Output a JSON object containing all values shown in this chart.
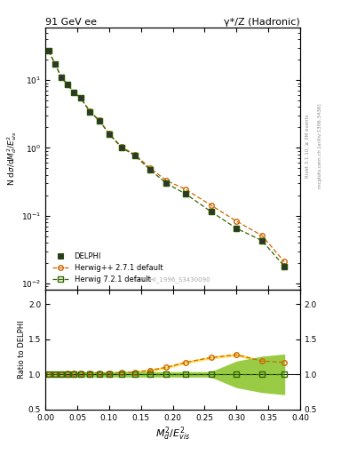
{
  "title_left": "91 GeV ee",
  "title_right": "γ*/Z (Hadronic)",
  "ylabel_main": "N dσ/dM²_d/E²_vis",
  "ylabel_ratio": "Ratio to DELPHI",
  "xlabel": "M²_d/E²_vis",
  "watermark": "DELPHI_1996_S3430090",
  "right_label": "Rivet 3.1.10, ≥ 3M events",
  "right_label2": "mcplots.cern.ch [arXiv:1306.3436]",
  "xlim": [
    0.0,
    0.4
  ],
  "ylim_main": [
    0.008,
    60
  ],
  "ylim_ratio": [
    0.5,
    2.2
  ],
  "data_x": [
    0.005,
    0.015,
    0.025,
    0.035,
    0.045,
    0.055,
    0.07,
    0.085,
    0.1,
    0.12,
    0.14,
    0.165,
    0.19,
    0.22,
    0.26,
    0.3,
    0.34,
    0.375
  ],
  "data_y": [
    27.0,
    17.5,
    11.0,
    8.5,
    6.5,
    5.5,
    3.4,
    2.5,
    1.6,
    1.0,
    0.78,
    0.47,
    0.3,
    0.21,
    0.115,
    0.065,
    0.043,
    0.018
  ],
  "data_yerr": [
    1.5,
    1.0,
    0.7,
    0.5,
    0.4,
    0.3,
    0.22,
    0.17,
    0.11,
    0.07,
    0.055,
    0.032,
    0.02,
    0.013,
    0.008,
    0.005,
    0.003,
    0.002
  ],
  "hw271_x": [
    0.005,
    0.015,
    0.025,
    0.035,
    0.045,
    0.055,
    0.07,
    0.085,
    0.1,
    0.12,
    0.14,
    0.165,
    0.19,
    0.22,
    0.26,
    0.3,
    0.34,
    0.375
  ],
  "hw271_y": [
    27.0,
    17.5,
    11.0,
    8.7,
    6.6,
    5.55,
    3.45,
    2.55,
    1.62,
    1.03,
    0.8,
    0.5,
    0.33,
    0.245,
    0.143,
    0.083,
    0.051,
    0.021
  ],
  "hw721_x": [
    0.005,
    0.015,
    0.025,
    0.035,
    0.045,
    0.055,
    0.07,
    0.085,
    0.1,
    0.12,
    0.14,
    0.165,
    0.19,
    0.22,
    0.26,
    0.3,
    0.34,
    0.375
  ],
  "hw721_y": [
    27.1,
    17.5,
    11.0,
    8.5,
    6.5,
    5.5,
    3.4,
    2.5,
    1.6,
    1.0,
    0.78,
    0.47,
    0.3,
    0.21,
    0.115,
    0.065,
    0.043,
    0.018
  ],
  "hw271_ratio": [
    1.0,
    1.0,
    1.0,
    1.02,
    1.02,
    1.01,
    1.02,
    1.02,
    1.01,
    1.03,
    1.03,
    1.06,
    1.1,
    1.17,
    1.24,
    1.28,
    1.19,
    1.17
  ],
  "hw721_ratio": [
    1.0,
    1.0,
    1.0,
    1.0,
    1.0,
    1.0,
    1.0,
    1.0,
    1.0,
    1.0,
    1.0,
    1.0,
    1.0,
    1.0,
    1.0,
    1.0,
    1.0,
    1.0
  ],
  "hw271_band_lo": [
    0.99,
    0.99,
    0.99,
    1.01,
    1.01,
    1.0,
    1.01,
    1.01,
    1.0,
    1.02,
    1.02,
    1.05,
    1.09,
    1.16,
    1.23,
    1.27,
    1.18,
    1.16
  ],
  "hw271_band_hi": [
    1.01,
    1.01,
    1.01,
    1.03,
    1.03,
    1.02,
    1.03,
    1.03,
    1.02,
    1.04,
    1.04,
    1.07,
    1.11,
    1.18,
    1.25,
    1.29,
    1.2,
    1.18
  ],
  "hw721_band_lo": [
    0.97,
    0.97,
    0.97,
    0.97,
    0.97,
    0.97,
    0.97,
    0.97,
    0.97,
    0.97,
    0.97,
    0.97,
    0.97,
    0.97,
    0.97,
    0.82,
    0.75,
    0.72
  ],
  "hw721_band_hi": [
    1.03,
    1.03,
    1.03,
    1.03,
    1.03,
    1.03,
    1.03,
    1.03,
    1.03,
    1.03,
    1.03,
    1.03,
    1.03,
    1.03,
    1.03,
    1.18,
    1.25,
    1.28
  ],
  "color_data": "#000000",
  "color_data_face": "#444444",
  "color_hw271": "#cc6600",
  "color_hw721": "#336600",
  "color_hw271_band": "#ffdd55",
  "color_hw721_band": "#99cc44"
}
